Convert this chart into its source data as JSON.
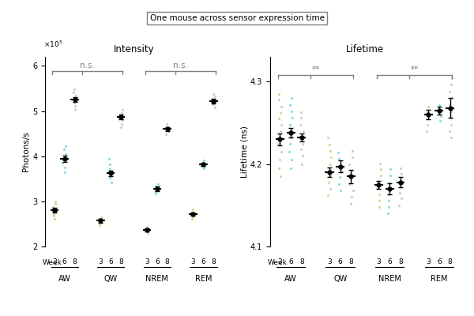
{
  "title": "One mouse across sensor expression time",
  "left_title": "Intensity",
  "right_title": "Lifetime",
  "left_ylabel": "Photons/s",
  "right_ylabel": "Lifetime (ns)",
  "xlabel": "Week",
  "left_ylim": [
    2.0,
    6.2
  ],
  "right_ylim": [
    4.1,
    4.33
  ],
  "left_yticks": [
    2,
    3,
    4,
    5,
    6
  ],
  "right_yticks": [
    4.1,
    4.2,
    4.3
  ],
  "groups": [
    "AW",
    "QW",
    "NREM",
    "REM"
  ],
  "weeks": [
    "3",
    "6",
    "8"
  ],
  "week_colors_scatter": [
    "#a8d870",
    "#66ccdd",
    "#bbbbbb"
  ],
  "intensity": {
    "AW": {
      "3": {
        "mean": 2.8,
        "err": 0.05,
        "scatter": [
          2.62,
          2.68,
          2.72,
          2.78,
          2.82,
          2.88,
          2.95,
          3.0
        ]
      },
      "6": {
        "mean": 3.95,
        "err": 0.07,
        "scatter": [
          3.65,
          3.75,
          3.85,
          3.92,
          3.98,
          4.05,
          4.15,
          4.22
        ]
      },
      "8": {
        "mean": 5.25,
        "err": 0.05,
        "scatter": [
          5.05,
          5.12,
          5.18,
          5.22,
          5.28,
          5.35,
          5.42,
          5.48
        ]
      }
    },
    "QW": {
      "3": {
        "mean": 2.57,
        "err": 0.04,
        "scatter": [
          2.48,
          2.52,
          2.55,
          2.58,
          2.61,
          2.65
        ]
      },
      "6": {
        "mean": 3.62,
        "err": 0.06,
        "scatter": [
          3.42,
          3.52,
          3.58,
          3.65,
          3.72,
          3.82,
          3.95
        ]
      },
      "8": {
        "mean": 4.87,
        "err": 0.06,
        "scatter": [
          4.65,
          4.72,
          4.8,
          4.88,
          4.95,
          5.02
        ]
      }
    },
    "NREM": {
      "3": {
        "mean": 2.37,
        "err": 0.03,
        "scatter": [
          2.3,
          2.34,
          2.37,
          2.4,
          2.44
        ]
      },
      "6": {
        "mean": 3.28,
        "err": 0.05,
        "scatter": [
          3.18,
          3.22,
          3.28,
          3.33,
          3.38
        ]
      },
      "8": {
        "mean": 4.6,
        "err": 0.05,
        "scatter": [
          4.48,
          4.55,
          4.6,
          4.65,
          4.72
        ]
      }
    },
    "REM": {
      "3": {
        "mean": 2.72,
        "err": 0.04,
        "scatter": [
          2.62,
          2.67,
          2.72,
          2.76,
          2.82
        ]
      },
      "6": {
        "mean": 3.82,
        "err": 0.04,
        "scatter": [
          3.74,
          3.78,
          3.82,
          3.86,
          3.9
        ]
      },
      "8": {
        "mean": 5.22,
        "err": 0.05,
        "scatter": [
          5.08,
          5.15,
          5.2,
          5.25,
          5.32,
          5.38
        ]
      }
    }
  },
  "lifetime": {
    "AW": {
      "3": {
        "mean": 4.23,
        "err": 0.007,
        "scatter": [
          4.185,
          4.195,
          4.205,
          4.215,
          4.225,
          4.232,
          4.24,
          4.248,
          4.255,
          4.262,
          4.27,
          4.278,
          4.285
        ]
      },
      "6": {
        "mean": 4.238,
        "err": 0.006,
        "scatter": [
          4.195,
          4.205,
          4.215,
          4.225,
          4.232,
          4.24,
          4.248,
          4.256,
          4.264,
          4.272,
          4.28
        ]
      },
      "8": {
        "mean": 4.232,
        "err": 0.005,
        "scatter": [
          4.2,
          4.21,
          4.218,
          4.225,
          4.232,
          4.24,
          4.248,
          4.256,
          4.263
        ]
      }
    },
    "QW": {
      "3": {
        "mean": 4.19,
        "err": 0.006,
        "scatter": [
          4.162,
          4.17,
          4.178,
          4.186,
          4.193,
          4.2,
          4.208,
          4.216,
          4.224,
          4.232
        ]
      },
      "6": {
        "mean": 4.197,
        "err": 0.007,
        "scatter": [
          4.168,
          4.176,
          4.184,
          4.191,
          4.198,
          4.206,
          4.214
        ]
      },
      "8": {
        "mean": 4.185,
        "err": 0.008,
        "scatter": [
          4.152,
          4.16,
          4.168,
          4.176,
          4.184,
          4.192,
          4.2,
          4.208,
          4.216
        ]
      }
    },
    "NREM": {
      "3": {
        "mean": 4.175,
        "err": 0.005,
        "scatter": [
          4.148,
          4.156,
          4.163,
          4.17,
          4.178,
          4.186,
          4.194,
          4.201
        ]
      },
      "6": {
        "mean": 4.17,
        "err": 0.007,
        "scatter": [
          4.14,
          4.148,
          4.156,
          4.163,
          4.17,
          4.178,
          4.186,
          4.194
        ]
      },
      "8": {
        "mean": 4.178,
        "err": 0.006,
        "scatter": [
          4.15,
          4.158,
          4.165,
          4.172,
          4.18,
          4.188,
          4.195
        ]
      }
    },
    "REM": {
      "3": {
        "mean": 4.26,
        "err": 0.006,
        "scatter": [
          4.24,
          4.248,
          4.255,
          4.262,
          4.27
        ]
      },
      "6": {
        "mean": 4.265,
        "err": 0.005,
        "scatter": [
          4.252,
          4.258,
          4.265,
          4.272
        ]
      },
      "8": {
        "mean": 4.268,
        "err": 0.012,
        "scatter": [
          4.232,
          4.24,
          4.248,
          4.256,
          4.264,
          4.272,
          4.28,
          4.288,
          4.296,
          4.304
        ]
      }
    }
  }
}
